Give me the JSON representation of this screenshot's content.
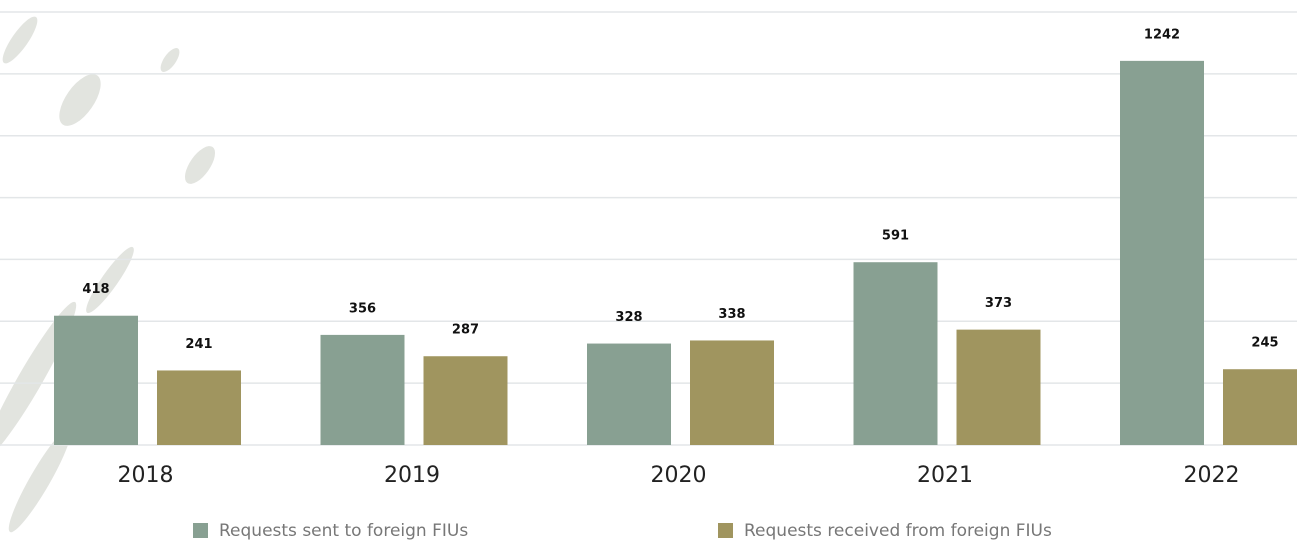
{
  "chart_data": {
    "type": "bar",
    "categories": [
      "2018",
      "2019",
      "2020",
      "2021",
      "2022"
    ],
    "series": [
      {
        "name": "Requests sent to foreign FIUs",
        "color": "#88a092",
        "values": [
          418,
          356,
          328,
          591,
          1242
        ]
      },
      {
        "name": "Requests received from foreign FIUs",
        "color": "#a0955f",
        "values": [
          241,
          287,
          338,
          373,
          245
        ]
      }
    ],
    "ylim": [
      0,
      1400
    ],
    "yticks": [
      0,
      200,
      400,
      600,
      800,
      1000,
      1200,
      1400
    ],
    "grid": true
  }
}
